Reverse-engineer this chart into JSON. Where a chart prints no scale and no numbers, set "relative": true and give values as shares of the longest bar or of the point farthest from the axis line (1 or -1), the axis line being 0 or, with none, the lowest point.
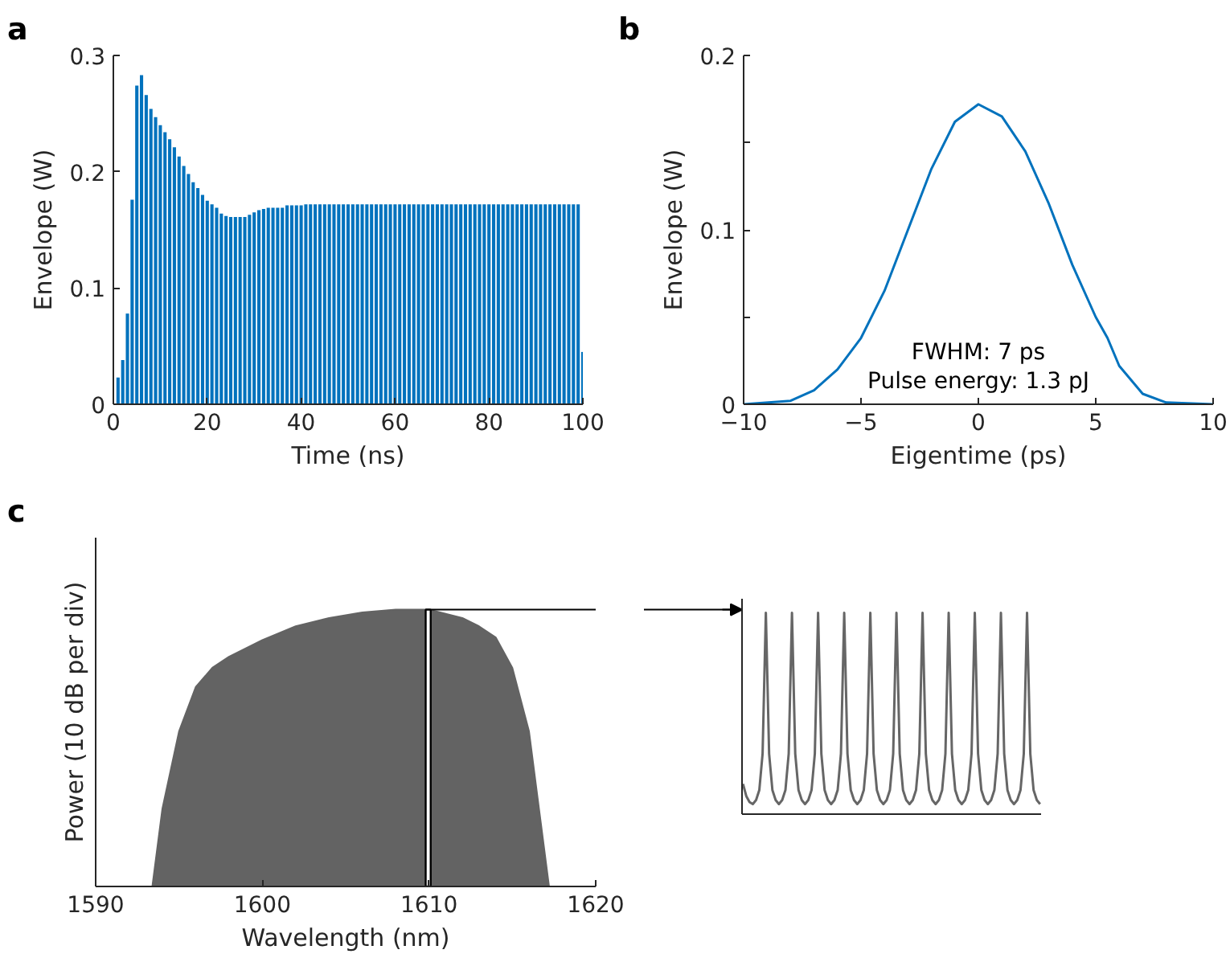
{
  "chart_data": [
    {
      "type": "bar",
      "title": "a",
      "xlabel": "Time (ns)",
      "ylabel": "Envelope (W)",
      "color": "#0072bd",
      "grid": false,
      "x": [
        1,
        2,
        3,
        4,
        5,
        6,
        7,
        8,
        9,
        10,
        11,
        12,
        13,
        14,
        15,
        16,
        17,
        18,
        19,
        20,
        21,
        22,
        23,
        24,
        25,
        26,
        27,
        28,
        29,
        30,
        31,
        32,
        33,
        34,
        35,
        36,
        37,
        38,
        39,
        40,
        41,
        42,
        43,
        44,
        45,
        46,
        47,
        48,
        49,
        50,
        51,
        52,
        53,
        54,
        55,
        56,
        57,
        58,
        59,
        60,
        61,
        62,
        63,
        64,
        65,
        66,
        67,
        68,
        69,
        70,
        71,
        72,
        73,
        74,
        75,
        76,
        77,
        78,
        79,
        80,
        81,
        82,
        83,
        84,
        85,
        86,
        87,
        88,
        89,
        90,
        91,
        92,
        93,
        94,
        95,
        96,
        97,
        98,
        99,
        100
      ],
      "values": [
        0.023,
        0.038,
        0.078,
        0.176,
        0.274,
        0.283,
        0.266,
        0.254,
        0.247,
        0.24,
        0.234,
        0.228,
        0.221,
        0.213,
        0.205,
        0.198,
        0.191,
        0.186,
        0.18,
        0.175,
        0.172,
        0.169,
        0.164,
        0.162,
        0.161,
        0.161,
        0.161,
        0.161,
        0.163,
        0.165,
        0.167,
        0.168,
        0.169,
        0.169,
        0.169,
        0.169,
        0.171,
        0.171,
        0.171,
        0.171,
        0.172,
        0.172,
        0.172,
        0.172,
        0.172,
        0.172,
        0.172,
        0.172,
        0.172,
        0.172,
        0.172,
        0.172,
        0.172,
        0.172,
        0.172,
        0.172,
        0.172,
        0.172,
        0.172,
        0.172,
        0.172,
        0.172,
        0.172,
        0.172,
        0.172,
        0.172,
        0.172,
        0.172,
        0.172,
        0.172,
        0.172,
        0.172,
        0.172,
        0.172,
        0.172,
        0.172,
        0.172,
        0.172,
        0.172,
        0.172,
        0.172,
        0.172,
        0.172,
        0.172,
        0.172,
        0.172,
        0.172,
        0.172,
        0.172,
        0.172,
        0.172,
        0.172,
        0.172,
        0.172,
        0.172,
        0.172,
        0.172,
        0.172,
        0.172,
        0.045
      ],
      "xlim": [
        0,
        100
      ],
      "ylim": [
        0,
        0.3
      ],
      "xticks": [
        0,
        20,
        40,
        60,
        80,
        100
      ],
      "yticks": [
        0,
        0.1,
        0.2,
        0.3
      ]
    },
    {
      "type": "line",
      "title": "b",
      "xlabel": "Eigentime (ps)",
      "ylabel": "Envelope (W)",
      "color": "#0072bd",
      "grid": false,
      "x": [
        -10,
        -8,
        -7,
        -6,
        -5,
        -4,
        -3,
        -2,
        -1,
        0,
        1,
        2,
        3,
        4,
        5,
        5.5,
        6,
        7,
        8,
        10
      ],
      "values": [
        0,
        0.002,
        0.008,
        0.02,
        0.038,
        0.065,
        0.1,
        0.135,
        0.162,
        0.172,
        0.165,
        0.145,
        0.115,
        0.08,
        0.05,
        0.038,
        0.022,
        0.006,
        0.001,
        0
      ],
      "xlim": [
        -10,
        10
      ],
      "ylim": [
        0,
        0.2
      ],
      "xticks": [
        -10,
        -5,
        0,
        5,
        10
      ],
      "yticks": [
        0,
        {
          "value": 0.05,
          "label": null
        },
        0.1,
        {
          "value": 0.15,
          "label": null
        },
        0.2
      ],
      "annotations": [
        "FWHM: 7 ps",
        "Pulse energy: 1.3 pJ"
      ]
    },
    {
      "type": "area",
      "title": "c",
      "xlabel": "Wavelength (nm)",
      "ylabel": "Power (10 dB per div)",
      "color": "#636363",
      "relative": true,
      "tick_labels": "x",
      "grid": false,
      "x": [
        1593.4,
        1594,
        1595,
        1596,
        1597,
        1598,
        1600,
        1602,
        1604,
        1606,
        1608,
        1610,
        1612,
        1613,
        1614,
        1615,
        1616,
        1616.6,
        1617.2
      ],
      "values": [
        0,
        0.28,
        0.56,
        0.72,
        0.79,
        0.83,
        0.89,
        0.94,
        0.97,
        0.99,
        1,
        1,
        0.97,
        0.94,
        0.9,
        0.79,
        0.56,
        0.28,
        0
      ],
      "xlim": [
        1590,
        1620
      ],
      "xticks": [
        1590,
        1600,
        1610,
        1620
      ],
      "bands": [
        {
          "axis": "x",
          "from": 1609.8,
          "to": 1610.1,
          "color": "#000000"
        }
      ]
    },
    {
      "type": "line",
      "color": "#666666",
      "relative": true,
      "tick_labels": false,
      "grid": false,
      "categories": [
        null,
        null,
        null,
        null,
        null,
        null,
        null,
        null,
        null,
        null,
        null,
        null,
        null,
        null,
        null,
        null,
        null,
        null,
        null,
        null,
        null,
        null,
        null,
        null,
        null,
        null,
        null,
        null,
        null,
        null,
        null,
        null,
        null,
        null,
        null,
        null,
        null,
        null,
        null,
        null,
        null,
        null,
        null,
        null,
        null,
        null,
        null,
        null,
        null,
        null,
        null,
        null,
        null,
        null,
        null,
        null,
        null,
        null,
        null,
        null,
        null,
        null,
        null,
        null,
        null,
        null,
        null,
        null,
        null,
        null,
        null,
        null,
        null,
        null,
        null,
        null,
        null,
        null,
        null,
        null,
        null,
        null,
        null,
        null,
        null,
        null,
        null,
        null,
        null,
        null,
        null,
        null
      ],
      "values": [
        0.15,
        0.09,
        0.06,
        0.05,
        0.07,
        0.12,
        0.3,
        1,
        0.3,
        0.12,
        0.07,
        0.05,
        0.07,
        0.12,
        0.3,
        1,
        0.3,
        0.12,
        0.07,
        0.05,
        0.07,
        0.12,
        0.3,
        1,
        0.3,
        0.12,
        0.07,
        0.05,
        0.07,
        0.12,
        0.3,
        1,
        0.3,
        0.12,
        0.07,
        0.05,
        0.07,
        0.12,
        0.3,
        1,
        0.3,
        0.12,
        0.07,
        0.05,
        0.07,
        0.12,
        0.3,
        1,
        0.3,
        0.12,
        0.07,
        0.05,
        0.07,
        0.12,
        0.3,
        1,
        0.3,
        0.12,
        0.07,
        0.05,
        0.07,
        0.12,
        0.3,
        1,
        0.3,
        0.12,
        0.07,
        0.05,
        0.07,
        0.12,
        0.3,
        1,
        0.3,
        0.12,
        0.07,
        0.05,
        0.07,
        0.12,
        0.3,
        1,
        0.3,
        0.12,
        0.07,
        0.05,
        0.07,
        0.12,
        0.3,
        1,
        0.3,
        0.12,
        0.07,
        0.05
      ]
    }
  ]
}
